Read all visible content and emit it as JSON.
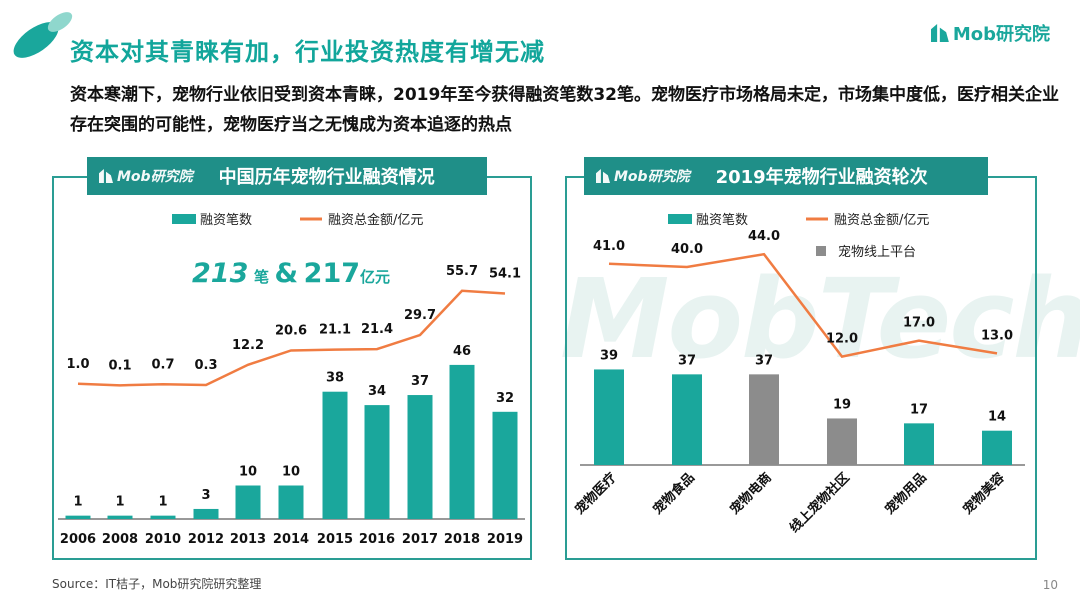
{
  "header": {
    "title": "资本对其青睐有加，行业投资热度有增无减",
    "brand": "Mob研究院",
    "intro": "资本寒潮下，宠物行业依旧受到资本青睐，2019年至今获得融资笔数32笔。宠物医疗市场格局未定，市场集中度低，医疗相关企业存在突围的可能性，宠物医疗当之无愧成为资本追逐的热点"
  },
  "left_panel": {
    "brand": "Mob研究院",
    "title": "中国历年宠物行业融资情况",
    "highlight": {
      "count": "213",
      "count_unit": "笔",
      "amp": "&",
      "amount": "217",
      "amount_unit": "亿元"
    }
  },
  "right_panel": {
    "brand": "Mob研究院",
    "title": "2019年宠物行业融资轮次"
  },
  "watermark": "MobTech",
  "footer": {
    "source": "Source：IT桔子，Mob研究院研究整理",
    "page": "10"
  },
  "colors": {
    "teal": "#1aa79c",
    "orange": "#f07c42",
    "gray": "#8c8c8c",
    "dark_teal": "#1f8f88"
  },
  "chart_data": [
    {
      "type": "bar",
      "title": "中国历年宠物行业融资情况",
      "categories": [
        "2006",
        "2008",
        "2010",
        "2012",
        "2013",
        "2014",
        "2015",
        "2016",
        "2017",
        "2018",
        "2019"
      ],
      "series": [
        {
          "name": "融资笔数",
          "kind": "bar",
          "color": "#1aa79c",
          "values": [
            1,
            1,
            1,
            3,
            10,
            10,
            38,
            34,
            37,
            46,
            32
          ]
        },
        {
          "name": "融资总金额/亿元",
          "kind": "line",
          "color": "#f07c42",
          "values": [
            1.0,
            0.1,
            0.7,
            0.3,
            12.2,
            20.6,
            21.1,
            21.4,
            29.7,
            55.7,
            54.1
          ]
        }
      ],
      "labels_bar": [
        "1",
        "1",
        "1",
        "3",
        "10",
        "10",
        "38",
        "34",
        "37",
        "46",
        "32"
      ],
      "labels_line": [
        "1.0",
        "0.1",
        "0.7",
        "0.3",
        "12.2",
        "20.6",
        "21.1",
        "21.4",
        "29.7",
        "55.7",
        "54.1"
      ],
      "legend": [
        "融资笔数",
        "融资总金额/亿元"
      ]
    },
    {
      "type": "bar",
      "title": "2019年宠物行业融资轮次",
      "categories": [
        "宠物医疗",
        "宠物食品",
        "宠物电商",
        "线上宠物社区",
        "宠物用品",
        "宠物美容"
      ],
      "series": [
        {
          "name": "融资笔数",
          "kind": "bar",
          "color": "#1aa79c",
          "values": [
            39,
            37,
            37,
            19,
            17,
            14
          ],
          "bar_colors": [
            "#1aa79c",
            "#1aa79c",
            "#8c8c8c",
            "#8c8c8c",
            "#1aa79c",
            "#1aa79c"
          ]
        },
        {
          "name": "融资总金额/亿元",
          "kind": "line",
          "color": "#f07c42",
          "values": [
            41.0,
            40.0,
            44.0,
            12.0,
            17.0,
            13.0
          ]
        }
      ],
      "labels_bar": [
        "39",
        "37",
        "37",
        "19",
        "17",
        "14"
      ],
      "labels_line": [
        "41.0",
        "40.0",
        "44.0",
        "12.0",
        "17.0",
        "13.0"
      ],
      "legend": [
        "融资笔数",
        "融资总金额/亿元",
        "宠物线上平台"
      ]
    }
  ]
}
